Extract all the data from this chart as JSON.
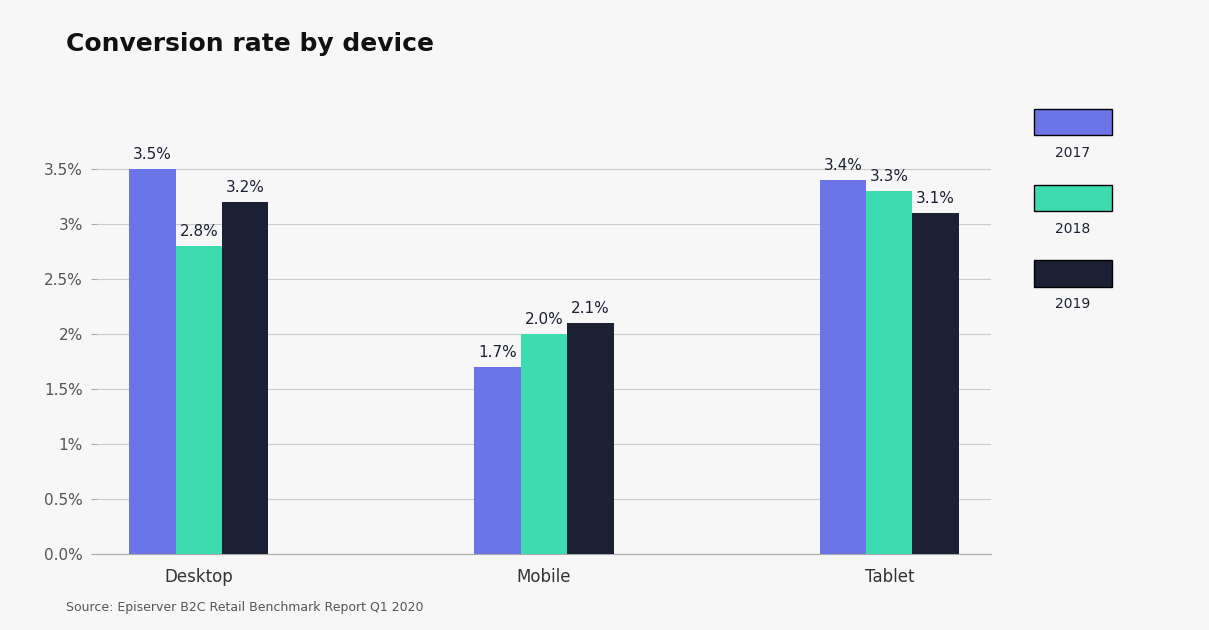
{
  "title": "Conversion rate by device",
  "categories": [
    "Desktop",
    "Mobile",
    "Tablet"
  ],
  "years": [
    "2017",
    "2018",
    "2019"
  ],
  "values": {
    "Desktop": [
      0.035,
      0.028,
      0.032
    ],
    "Mobile": [
      0.017,
      0.02,
      0.021
    ],
    "Tablet": [
      0.034,
      0.033,
      0.031
    ]
  },
  "bar_colors": [
    "#6B75E8",
    "#3DDCB0",
    "#1C2035"
  ],
  "background_color": "#F7F7F7",
  "title_fontsize": 18,
  "label_fontsize": 11,
  "tick_fontsize": 11,
  "source_text": "Source: Episerver B2C Retail Benchmark Report Q1 2020",
  "ylim": [
    0,
    0.04
  ],
  "yticks": [
    0.0,
    0.005,
    0.01,
    0.015,
    0.02,
    0.025,
    0.03,
    0.035
  ],
  "ytick_labels": [
    "0.0%",
    "0.5%",
    "1%",
    "1.5%",
    "2%",
    "2.5%",
    "3%",
    "3.5%"
  ]
}
